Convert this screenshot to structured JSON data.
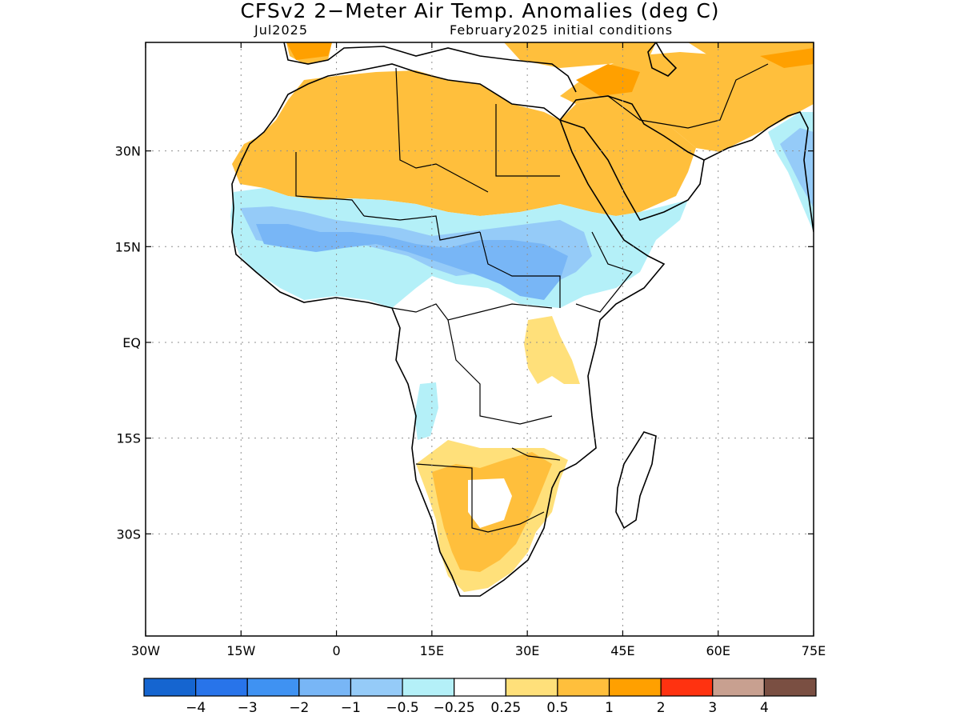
{
  "title": "CFSv2 2−Meter Air Temp. Anomalies (deg C)",
  "subtitle_left": "Jul2025",
  "subtitle_right": "February2025 initial conditions",
  "map": {
    "lon_range": [
      -30,
      75
    ],
    "lat_range": [
      -46,
      47
    ],
    "grid": "dotted",
    "lon_ticks": [
      {
        "value": -30,
        "label": "30W"
      },
      {
        "value": -15,
        "label": "15W"
      },
      {
        "value": 0,
        "label": "0"
      },
      {
        "value": 15,
        "label": "15E"
      },
      {
        "value": 30,
        "label": "30E"
      },
      {
        "value": 45,
        "label": "45E"
      },
      {
        "value": 60,
        "label": "60E"
      },
      {
        "value": 75,
        "label": "75E"
      }
    ],
    "lat_ticks": [
      {
        "value": 30,
        "label": "30N"
      },
      {
        "value": 15,
        "label": "15N"
      },
      {
        "value": 0,
        "label": "EQ"
      },
      {
        "value": -15,
        "label": "15S"
      },
      {
        "value": -30,
        "label": "30S"
      }
    ]
  },
  "colorbar": {
    "colors": [
      "#1565d0",
      "#2874ea",
      "#3f92f2",
      "#78b6f6",
      "#95cbf8",
      "#b4f0f8",
      "#ffffff",
      "#ffe07a",
      "#ffbf3c",
      "#ffa000",
      "#ff3210",
      "#c8a090",
      "#7a4f42"
    ],
    "labels": [
      "−4",
      "−3",
      "−2",
      "−1",
      "−0.5",
      "−0.25",
      "0.25",
      "0.5",
      "1",
      "2",
      "3",
      "4"
    ]
  }
}
